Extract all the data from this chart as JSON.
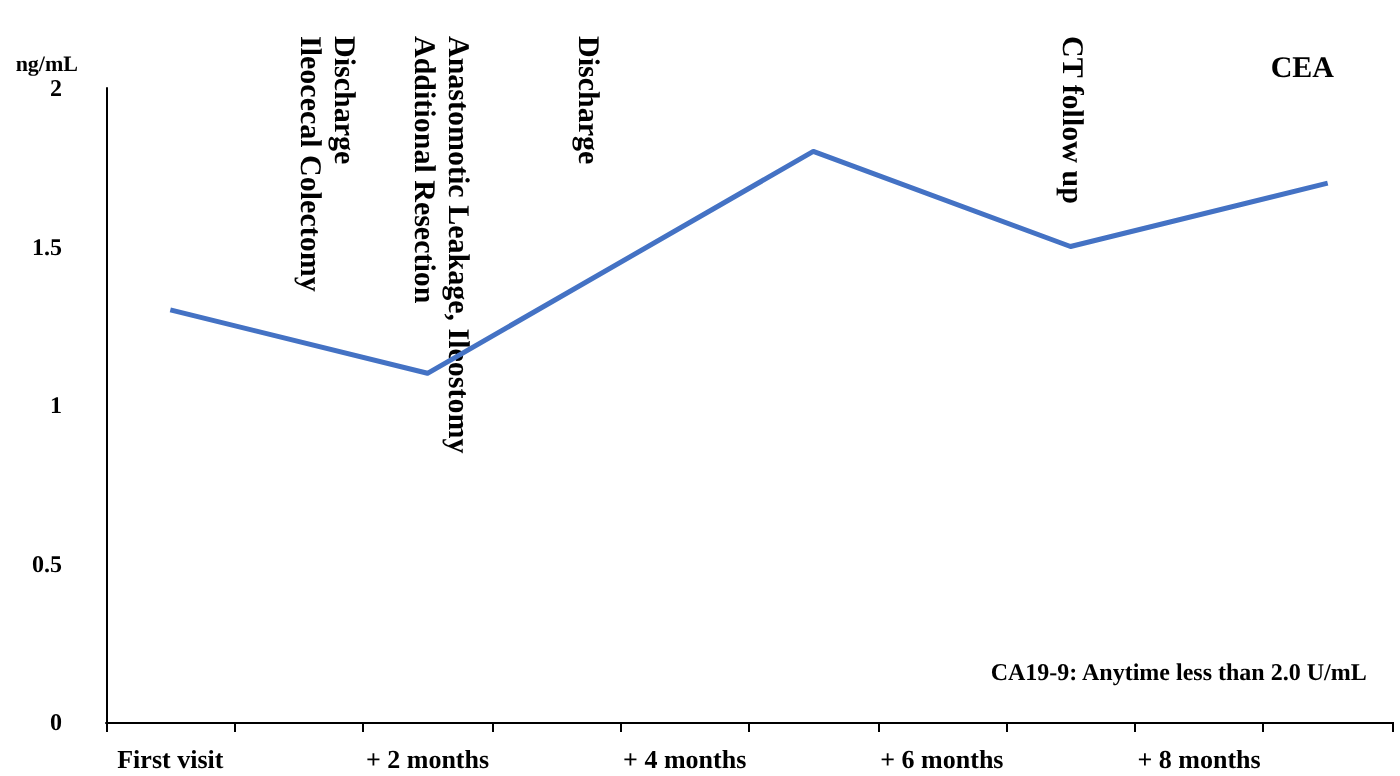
{
  "chart_data": {
    "type": "line",
    "title": "CEA",
    "ylabel": "ng/mL",
    "categories": [
      "First visit",
      null,
      "+ 2 months",
      null,
      "+ 4 months",
      null,
      "+ 6 months",
      null,
      "+ 8 months",
      null
    ],
    "series": [
      {
        "color": "#4472c4",
        "values": [
          1.3,
          null,
          1.1,
          null,
          null,
          1.8,
          null,
          1.5,
          null,
          1.7
        ]
      }
    ],
    "ylim": [
      0,
      2
    ],
    "yticks": [
      0,
      0.5,
      1,
      1.5,
      2
    ],
    "grid": false,
    "marker": "none",
    "line_style": "solid",
    "annotations": [
      "Discharge\nIleocecal Colectomy",
      "Anastomotic Leakage, Ileostomy\nAdditional Resection",
      "Discharge",
      "CT follow up",
      "CA19-9: Anytime less than 2.0 U/mL"
    ]
  }
}
